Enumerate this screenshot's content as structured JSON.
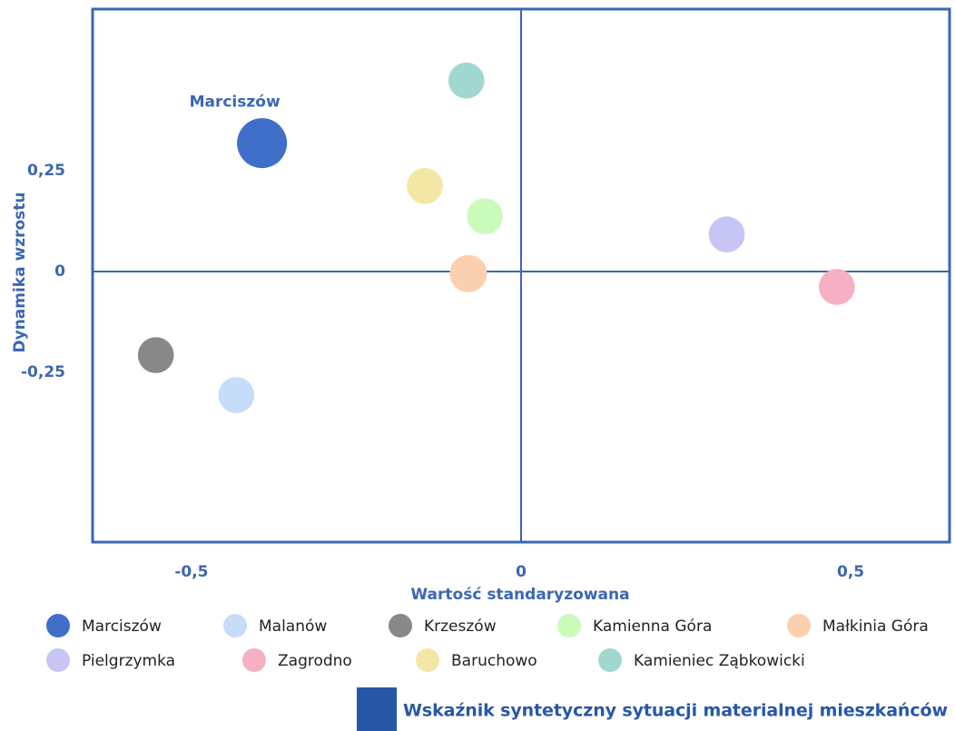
{
  "chart_data": {
    "type": "bubble",
    "xlabel": "Wartość standaryzowana",
    "ylabel": "Dynamika wzrostu",
    "xlim": [
      -0.65,
      0.65
    ],
    "ylim": [
      -0.67,
      0.65
    ],
    "xticks": [
      {
        "value": -0.5,
        "label": "-0,5"
      },
      0,
      {
        "value": 0.5,
        "label": "0,5"
      }
    ],
    "yticks": [
      {
        "value": 0.25,
        "label": "0,25"
      },
      0,
      {
        "value": -0.25,
        "label": "-0,25"
      }
    ],
    "axis_color": "#3a66b5",
    "series": [
      {
        "name": "Marciszów",
        "color": "#3f6fc9",
        "x": -0.393,
        "y": 0.318,
        "size": 100
      },
      {
        "name": "Malanów",
        "color": "#c6dcf8",
        "x": -0.432,
        "y": -0.306,
        "size": 52
      },
      {
        "name": "Krzeszów",
        "color": "#888888",
        "x": -0.554,
        "y": -0.207,
        "size": 52
      },
      {
        "name": "Kamienna Góra",
        "color": "#cbfbbb",
        "x": -0.055,
        "y": 0.137,
        "size": 52
      },
      {
        "name": "Małkinia Góra",
        "color": "#fbd0ae",
        "x": -0.08,
        "y": -0.005,
        "size": 56
      },
      {
        "name": "Pielgrzymka",
        "color": "#c7c5f6",
        "x": 0.312,
        "y": 0.092,
        "size": 52
      },
      {
        "name": "Zagrodno",
        "color": "#f6b0c1",
        "x": 0.479,
        "y": -0.038,
        "size": 52
      },
      {
        "name": "Baruchowo",
        "color": "#f2e7a5",
        "x": -0.146,
        "y": 0.212,
        "size": 52
      },
      {
        "name": "Kamieniec Ząbkowicki",
        "color": "#a0d7d1",
        "x": -0.083,
        "y": 0.473,
        "size": 52
      }
    ],
    "size_legend": {
      "label": "Wskaźnik syntetyczny sytuacji materialnej mieszkańców",
      "color": "#2857a8"
    }
  }
}
